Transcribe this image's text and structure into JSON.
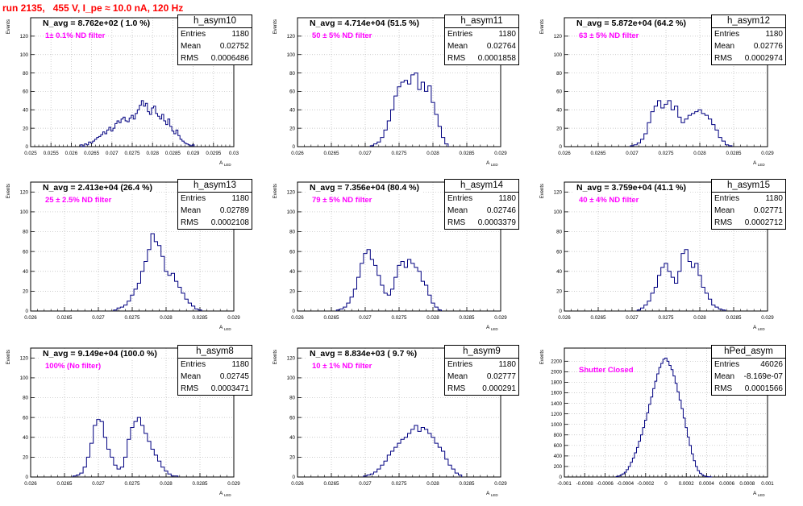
{
  "title": "run 2135,   455 V, I_pe ≈ 10.0 nA, 120 Hz",
  "colors": {
    "line": "#000080",
    "filter_text": "#ff00ff",
    "title": "#ff0000",
    "grid": "#bbbbbb"
  },
  "common": {
    "ylabel": "Events",
    "xlabel_main": "A",
    "xlabel_sub": "LED",
    "stat_entries": "Entries",
    "stat_mean": "Mean",
    "stat_rms": "RMS"
  },
  "chart_data": [
    {
      "type": "bar",
      "hist": "h_asym10",
      "stats": {
        "entries": "1180",
        "mean": "0.02752",
        "rms": "0.0006486"
      },
      "navg": "N_avg = 8.762e+02 ( 1.0 %)",
      "filter": "1± 0.1% ND filter",
      "xlim": [
        0.025,
        0.03
      ],
      "ylim": [
        0,
        140
      ],
      "xticks": [
        "0.025",
        "0.0255",
        "0.026",
        "0.0265",
        "0.027",
        "0.0275",
        "0.028",
        "0.0285",
        "0.029",
        "0.0295",
        "0.03"
      ],
      "yticks": [
        "0",
        "20",
        "40",
        "60",
        "80",
        "100",
        "120"
      ],
      "ytick_values": [
        0,
        20,
        40,
        60,
        80,
        100,
        120
      ],
      "x": [
        0.02625,
        0.0263,
        0.02635,
        0.0264,
        0.02645,
        0.0265,
        0.02655,
        0.0266,
        0.02665,
        0.0267,
        0.02675,
        0.0268,
        0.02685,
        0.0269,
        0.02695,
        0.027,
        0.02705,
        0.0271,
        0.02715,
        0.0272,
        0.02725,
        0.0273,
        0.02735,
        0.0274,
        0.02745,
        0.0275,
        0.02755,
        0.0276,
        0.02765,
        0.0277,
        0.02775,
        0.0278,
        0.02785,
        0.0279,
        0.02795,
        0.028,
        0.02805,
        0.0281,
        0.02815,
        0.0282,
        0.02825,
        0.0283,
        0.02835,
        0.0284,
        0.02845,
        0.0285,
        0.02855,
        0.0286,
        0.02865,
        0.0287,
        0.02875,
        0.0288,
        0.02885,
        0.0289,
        0.02895,
        0.029
      ],
      "values": [
        2,
        0,
        3,
        2,
        5,
        4,
        6,
        8,
        10,
        11,
        13,
        16,
        14,
        18,
        21,
        17,
        20,
        25,
        28,
        26,
        30,
        32,
        28,
        27,
        31,
        34,
        30,
        36,
        40,
        45,
        50,
        44,
        47,
        38,
        35,
        42,
        44,
        36,
        33,
        30,
        35,
        28,
        24,
        30,
        22,
        17,
        14,
        18,
        12,
        8,
        6,
        4,
        3,
        2,
        1,
        2
      ]
    },
    {
      "type": "bar",
      "hist": "h_asym11",
      "stats": {
        "entries": "1180",
        "mean": "0.02764",
        "rms": "0.0001858"
      },
      "navg": "N_avg = 4.714e+04 (51.5 %)",
      "filter": "50 ± 5% ND filter",
      "xlim": [
        0.026,
        0.029
      ],
      "ylim": [
        0,
        140
      ],
      "xticks": [
        "0.026",
        "0.0265",
        "0.027",
        "0.0275",
        "0.028",
        "0.0285",
        "0.029"
      ],
      "yticks": [
        "0",
        "20",
        "40",
        "60",
        "80",
        "100",
        "120"
      ],
      "ytick_values": [
        0,
        20,
        40,
        60,
        80,
        100,
        120
      ],
      "x": [
        0.0271,
        0.02715,
        0.0272,
        0.02725,
        0.0273,
        0.02735,
        0.0274,
        0.02745,
        0.0275,
        0.02755,
        0.0276,
        0.02765,
        0.0277,
        0.02775,
        0.0278,
        0.02785,
        0.0279,
        0.02795,
        0.028,
        0.02805,
        0.0281,
        0.02815,
        0.0282
      ],
      "values": [
        1,
        3,
        5,
        10,
        18,
        28,
        40,
        55,
        65,
        70,
        72,
        68,
        78,
        80,
        62,
        70,
        60,
        66,
        48,
        35,
        22,
        10,
        3
      ]
    },
    {
      "type": "bar",
      "hist": "h_asym12",
      "stats": {
        "entries": "1180",
        "mean": "0.02776",
        "rms": "0.0002974"
      },
      "navg": "N_avg = 5.872e+04 (64.2 %)",
      "filter": "63 ± 5% ND filter",
      "xlim": [
        0.026,
        0.029
      ],
      "ylim": [
        0,
        140
      ],
      "xticks": [
        "0.026",
        "0.0265",
        "0.027",
        "0.0275",
        "0.028",
        "0.0285",
        "0.029"
      ],
      "yticks": [
        "0",
        "20",
        "40",
        "60",
        "80",
        "100",
        "120"
      ],
      "ytick_values": [
        0,
        20,
        40,
        60,
        80,
        100,
        120
      ],
      "x": [
        0.027,
        0.02705,
        0.0271,
        0.02715,
        0.0272,
        0.02725,
        0.0273,
        0.02735,
        0.0274,
        0.02745,
        0.0275,
        0.02755,
        0.0276,
        0.02765,
        0.0277,
        0.02775,
        0.0278,
        0.02785,
        0.0279,
        0.02795,
        0.028,
        0.02805,
        0.0281,
        0.02815,
        0.0282,
        0.02825,
        0.0283,
        0.02835,
        0.0284,
        0.02845
      ],
      "values": [
        1,
        2,
        4,
        8,
        14,
        26,
        38,
        44,
        50,
        42,
        46,
        50,
        40,
        44,
        32,
        26,
        30,
        34,
        36,
        38,
        40,
        36,
        34,
        30,
        24,
        18,
        10,
        6,
        2,
        1
      ]
    },
    {
      "type": "bar",
      "hist": "h_asym13",
      "stats": {
        "entries": "1180",
        "mean": "0.02789",
        "rms": "0.0002108"
      },
      "navg": "N_avg = 2.413e+04 (26.4 %)",
      "filter": "25 ± 2.5% ND filter",
      "xlim": [
        0.026,
        0.029
      ],
      "ylim": [
        0,
        130
      ],
      "xticks": [
        "0.026",
        "0.0265",
        "0.027",
        "0.0275",
        "0.028",
        "0.0285",
        "0.029"
      ],
      "yticks": [
        "0",
        "20",
        "40",
        "60",
        "80",
        "100",
        "120"
      ],
      "ytick_values": [
        0,
        20,
        40,
        60,
        80,
        100,
        120
      ],
      "x": [
        0.02725,
        0.0273,
        0.02735,
        0.0274,
        0.02745,
        0.0275,
        0.02755,
        0.0276,
        0.02765,
        0.0277,
        0.02775,
        0.0278,
        0.02785,
        0.0279,
        0.02795,
        0.028,
        0.02805,
        0.0281,
        0.02815,
        0.0282,
        0.02825,
        0.0283,
        0.02835,
        0.0284,
        0.02845,
        0.0285
      ],
      "values": [
        1,
        3,
        4,
        6,
        10,
        16,
        22,
        28,
        40,
        50,
        62,
        78,
        70,
        66,
        55,
        40,
        36,
        38,
        30,
        24,
        18,
        12,
        8,
        5,
        2,
        1
      ]
    },
    {
      "type": "bar",
      "hist": "h_asym14",
      "stats": {
        "entries": "1180",
        "mean": "0.02746",
        "rms": "0.0003379"
      },
      "navg": "N_avg = 7.356e+04 (80.4 %)",
      "filter": "79 ± 5% ND filter",
      "xlim": [
        0.026,
        0.029
      ],
      "ylim": [
        0,
        130
      ],
      "xticks": [
        "0.026",
        "0.0265",
        "0.027",
        "0.0275",
        "0.028",
        "0.0285",
        "0.029"
      ],
      "yticks": [
        "0",
        "20",
        "40",
        "60",
        "80",
        "100",
        "120"
      ],
      "ytick_values": [
        0,
        20,
        40,
        60,
        80,
        100,
        120
      ],
      "x": [
        0.0266,
        0.02665,
        0.0267,
        0.02675,
        0.0268,
        0.02685,
        0.0269,
        0.02695,
        0.027,
        0.02705,
        0.0271,
        0.02715,
        0.0272,
        0.02725,
        0.0273,
        0.02735,
        0.0274,
        0.02745,
        0.0275,
        0.02755,
        0.0276,
        0.02765,
        0.0277,
        0.02775,
        0.0278,
        0.02785,
        0.0279,
        0.02795,
        0.028,
        0.02805,
        0.0281
      ],
      "values": [
        1,
        2,
        4,
        8,
        14,
        22,
        34,
        48,
        58,
        62,
        52,
        46,
        36,
        26,
        18,
        16,
        22,
        34,
        46,
        50,
        44,
        52,
        48,
        44,
        40,
        30,
        26,
        16,
        8,
        4,
        1
      ]
    },
    {
      "type": "bar",
      "hist": "h_asym15",
      "stats": {
        "entries": "1180",
        "mean": "0.02771",
        "rms": "0.0002712"
      },
      "navg": "N_avg = 3.759e+04 (41.1 %)",
      "filter": "40 ± 4% ND filter",
      "xlim": [
        0.026,
        0.029
      ],
      "ylim": [
        0,
        130
      ],
      "xticks": [
        "0.026",
        "0.0265",
        "0.027",
        "0.0275",
        "0.028",
        "0.0285",
        "0.029"
      ],
      "yticks": [
        "0",
        "20",
        "40",
        "60",
        "80",
        "100",
        "120"
      ],
      "ytick_values": [
        0,
        20,
        40,
        60,
        80,
        100,
        120
      ],
      "x": [
        0.0271,
        0.02715,
        0.0272,
        0.02725,
        0.0273,
        0.02735,
        0.0274,
        0.02745,
        0.0275,
        0.02755,
        0.0276,
        0.02765,
        0.0277,
        0.02775,
        0.0278,
        0.02785,
        0.0279,
        0.02795,
        0.028,
        0.02805,
        0.0281,
        0.02815,
        0.0282,
        0.02825,
        0.0283,
        0.02835
      ],
      "values": [
        1,
        3,
        6,
        10,
        18,
        24,
        36,
        44,
        48,
        40,
        34,
        28,
        40,
        58,
        62,
        50,
        44,
        48,
        36,
        24,
        18,
        12,
        6,
        4,
        2,
        1
      ]
    },
    {
      "type": "bar",
      "hist": "h_asym8",
      "stats": {
        "entries": "1180",
        "mean": "0.02745",
        "rms": "0.0003471"
      },
      "navg": "N_avg = 9.149e+04 (100.0 %)",
      "filter": "100% (No filter)",
      "xlim": [
        0.026,
        0.029
      ],
      "ylim": [
        0,
        130
      ],
      "xticks": [
        "0.026",
        "0.0265",
        "0.027",
        "0.0275",
        "0.028",
        "0.0285",
        "0.029"
      ],
      "yticks": [
        "0",
        "20",
        "40",
        "60",
        "80",
        "100",
        "120"
      ],
      "ytick_values": [
        0,
        20,
        40,
        60,
        80,
        100,
        120
      ],
      "x": [
        0.02665,
        0.0267,
        0.02675,
        0.0268,
        0.02685,
        0.0269,
        0.02695,
        0.027,
        0.02705,
        0.0271,
        0.02715,
        0.0272,
        0.02725,
        0.0273,
        0.02735,
        0.0274,
        0.02745,
        0.0275,
        0.02755,
        0.0276,
        0.02765,
        0.0277,
        0.02775,
        0.0278,
        0.02785,
        0.0279,
        0.02795,
        0.028,
        0.02805,
        0.0281,
        0.02815
      ],
      "values": [
        1,
        2,
        4,
        10,
        20,
        34,
        52,
        58,
        56,
        40,
        28,
        20,
        12,
        8,
        10,
        20,
        38,
        50,
        56,
        60,
        52,
        44,
        36,
        28,
        22,
        16,
        10,
        6,
        3,
        1,
        1
      ]
    },
    {
      "type": "bar",
      "hist": "h_asym9",
      "stats": {
        "entries": "1180",
        "mean": "0.02777",
        "rms": "0.000291"
      },
      "navg": "N_avg = 8.834e+03 ( 9.7 %)",
      "filter": "10 ± 1% ND filter",
      "xlim": [
        0.026,
        0.029
      ],
      "ylim": [
        0,
        130
      ],
      "xticks": [
        "0.026",
        "0.0265",
        "0.027",
        "0.0275",
        "0.028",
        "0.0285",
        "0.029"
      ],
      "yticks": [
        "0",
        "20",
        "40",
        "60",
        "80",
        "100",
        "120"
      ],
      "ytick_values": [
        0,
        20,
        40,
        60,
        80,
        100,
        120
      ],
      "x": [
        0.027,
        0.02705,
        0.0271,
        0.02715,
        0.0272,
        0.02725,
        0.0273,
        0.02735,
        0.0274,
        0.02745,
        0.0275,
        0.02755,
        0.0276,
        0.02765,
        0.0277,
        0.02775,
        0.0278,
        0.02785,
        0.0279,
        0.02795,
        0.028,
        0.02805,
        0.0281,
        0.02815,
        0.0282,
        0.02825,
        0.0283,
        0.02835,
        0.0284
      ],
      "values": [
        1,
        2,
        3,
        5,
        8,
        12,
        16,
        22,
        26,
        30,
        34,
        38,
        40,
        44,
        48,
        52,
        46,
        50,
        48,
        44,
        40,
        34,
        30,
        26,
        18,
        12,
        8,
        4,
        2
      ]
    },
    {
      "type": "bar",
      "hist": "hPed_asym",
      "stats": {
        "entries": "46026",
        "mean": "-8.169e-07",
        "rms": "0.0001566"
      },
      "navg": "",
      "filter": "Shutter Closed",
      "xlim": [
        -0.001,
        0.001
      ],
      "ylim": [
        0,
        2450
      ],
      "xticks": [
        "-0.001",
        "-0.0008",
        "-0.0006",
        "-0.0004",
        "-0.0002",
        "0",
        "0.0002",
        "0.0004",
        "0.0006",
        "0.0008",
        "0.001"
      ],
      "yticks": [
        "0",
        "200",
        "400",
        "600",
        "800",
        "1000",
        "1200",
        "1400",
        "1600",
        "1800",
        "2000",
        "2200"
      ],
      "ytick_values": [
        0,
        200,
        400,
        600,
        800,
        1000,
        1200,
        1400,
        1600,
        1800,
        2000,
        2200
      ],
      "x": [
        -0.00048,
        -0.00046,
        -0.00044,
        -0.00042,
        -0.0004,
        -0.00038,
        -0.00036,
        -0.00034,
        -0.00032,
        -0.0003,
        -0.00028,
        -0.00026,
        -0.00024,
        -0.00022,
        -0.0002,
        -0.00018,
        -0.00016,
        -0.00014,
        -0.00012,
        -0.0001,
        -8e-05,
        -6e-05,
        -4e-05,
        -2e-05,
        0,
        2e-05,
        4e-05,
        6e-05,
        8e-05,
        0.0001,
        0.00012,
        0.00014,
        0.00016,
        0.00018,
        0.0002,
        0.00022,
        0.00024,
        0.00026,
        0.00028,
        0.0003,
        0.00032,
        0.00034,
        0.00036,
        0.00038,
        0.0004,
        0.00042,
        0.00044
      ],
      "values": [
        10,
        20,
        40,
        60,
        90,
        140,
        200,
        280,
        360,
        460,
        560,
        680,
        800,
        940,
        1080,
        1220,
        1380,
        1520,
        1680,
        1820,
        1960,
        2080,
        2160,
        2240,
        2260,
        2200,
        2120,
        2040,
        1920,
        1780,
        1620,
        1460,
        1300,
        1120,
        940,
        760,
        600,
        440,
        310,
        200,
        120,
        70,
        40,
        20,
        10,
        5,
        2
      ]
    }
  ]
}
